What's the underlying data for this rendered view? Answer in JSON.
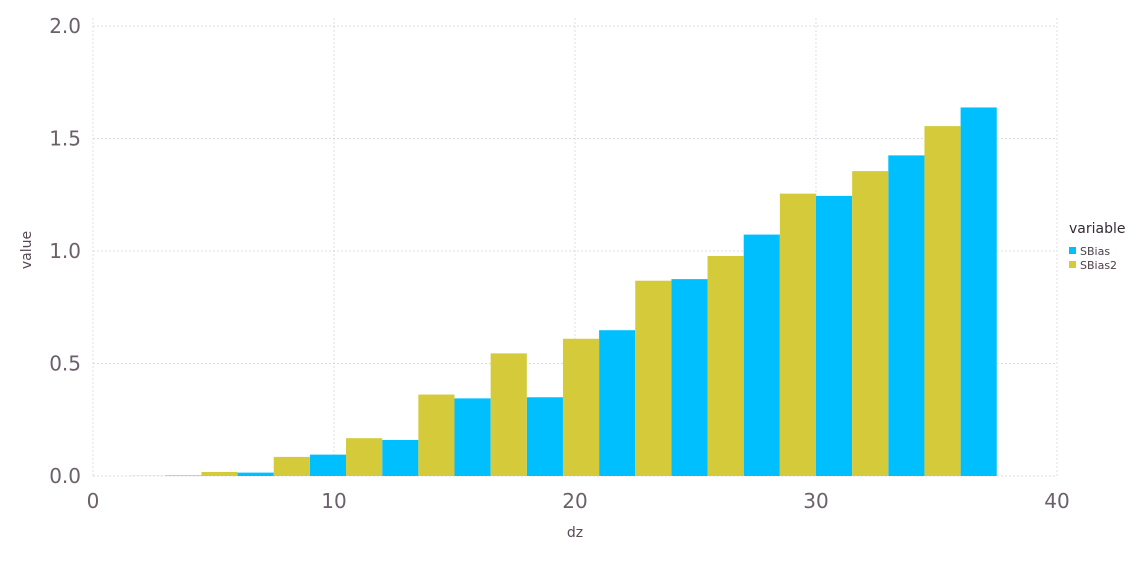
{
  "chart_data": {
    "type": "bar",
    "xlabel": "dz",
    "ylabel": "value",
    "xlim": [
      0,
      40
    ],
    "ylim": [
      0,
      2.0
    ],
    "x_ticks": [
      "0",
      "10",
      "20",
      "30",
      "40"
    ],
    "y_ticks": [
      "0.0",
      "0.5",
      "1.0",
      "1.5",
      "2.0"
    ],
    "grid": true,
    "legend": {
      "title": "variable",
      "position": "right",
      "entries": [
        {
          "name": "SBias",
          "color": "#00bfff"
        },
        {
          "name": "SBias2",
          "color": "#d4ca3a"
        }
      ]
    },
    "bin_width": 1.5,
    "series": [
      {
        "name": "SBias",
        "color": "#00bfff",
        "bins": [
          [
            3,
            0.002
          ],
          [
            6,
            0.015
          ],
          [
            9,
            0.095
          ],
          [
            12,
            0.16
          ],
          [
            15,
            0.345
          ],
          [
            18,
            0.35
          ],
          [
            21,
            0.648
          ],
          [
            24,
            0.875
          ],
          [
            27,
            1.073
          ],
          [
            30,
            1.245
          ],
          [
            33,
            1.425
          ],
          [
            36,
            1.638
          ]
        ]
      },
      {
        "name": "SBias2",
        "color": "#d4ca3a",
        "bins": [
          [
            1.5,
            0.001
          ],
          [
            4.5,
            0.018
          ],
          [
            7.5,
            0.085
          ],
          [
            10.5,
            0.168
          ],
          [
            13.5,
            0.362
          ],
          [
            16.5,
            0.545
          ],
          [
            19.5,
            0.61
          ],
          [
            22.5,
            0.868
          ],
          [
            25.5,
            0.978
          ],
          [
            28.5,
            1.255
          ],
          [
            31.5,
            1.355
          ],
          [
            34.5,
            1.555
          ]
        ]
      }
    ]
  }
}
